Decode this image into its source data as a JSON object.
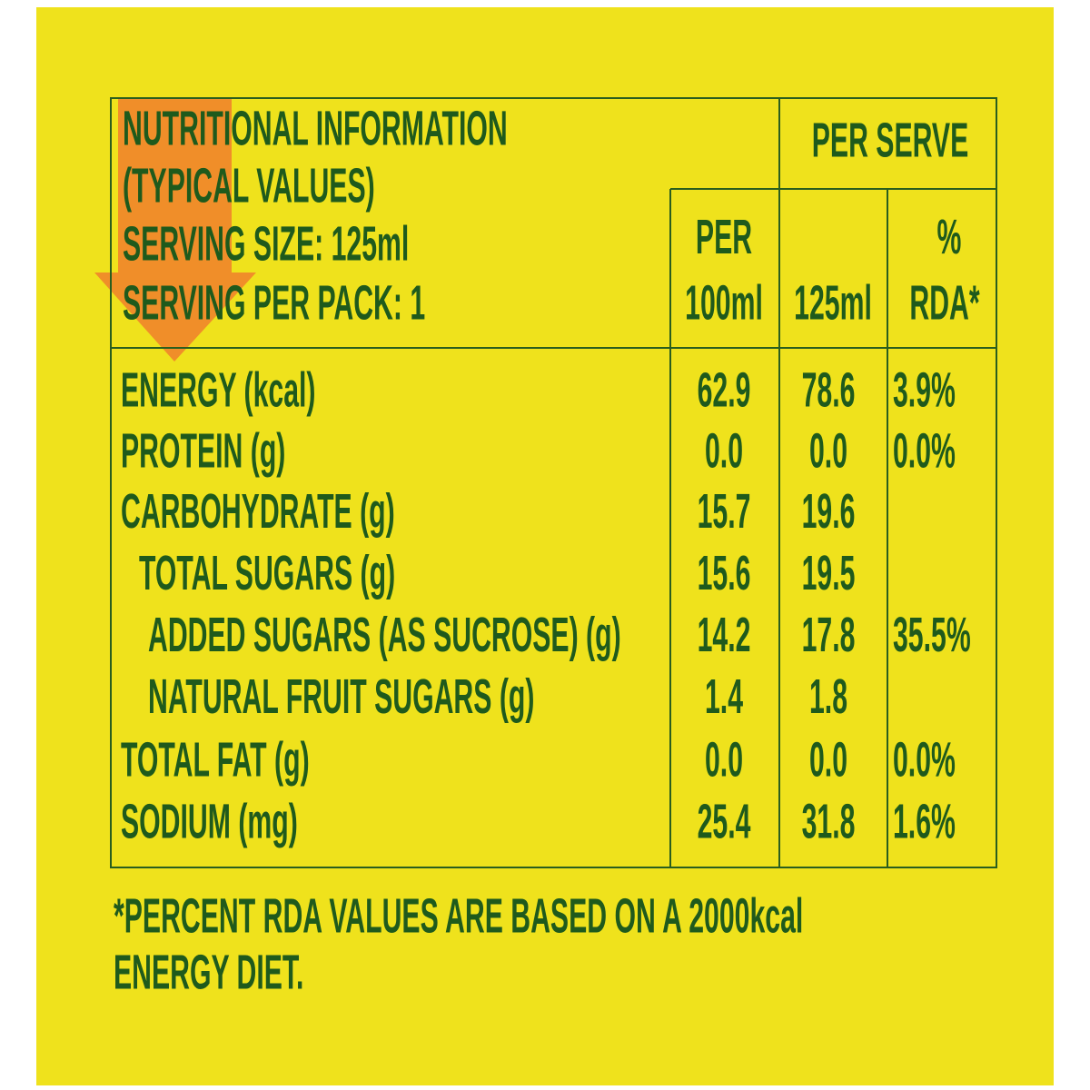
{
  "table": {
    "header": {
      "title_lines": [
        "NUTRITIONAL INFORMATION",
        "(TYPICAL VALUES)",
        "SERVING SIZE: 125ml",
        "SERVING PER PACK: 1"
      ],
      "per_serve": "PER SERVE",
      "columns": [
        [
          "PER",
          "100ml"
        ],
        [
          "125ml"
        ],
        [
          "%",
          "RDA*"
        ]
      ]
    },
    "rows": [
      [
        "ENERGY (kcal)",
        "62.9",
        "78.6",
        "3.9%"
      ],
      [
        "PROTEIN (g)",
        "0.0",
        "0.0",
        "0.0%"
      ],
      [
        "CARBOHYDRATE (g)",
        "15.7",
        "19.6",
        null
      ],
      [
        "TOTAL SUGARS (g)",
        "15.6",
        "19.5",
        null
      ],
      [
        "ADDED SUGARS (AS SUCROSE) (g)",
        "14.2",
        "17.8",
        "35.5%"
      ],
      [
        "NATURAL FRUIT SUGARS (g)",
        "1.4",
        "1.8",
        null
      ],
      [
        "TOTAL FAT (g)",
        "0.0",
        "0.0",
        "0.0%"
      ],
      [
        "SODIUM (mg)",
        "25.4",
        "31.8",
        "1.6%"
      ]
    ]
  },
  "footnote": [
    "*PERCENT RDA VALUES ARE BASED ON A 2000kcal",
    "ENERGY DIET."
  ]
}
